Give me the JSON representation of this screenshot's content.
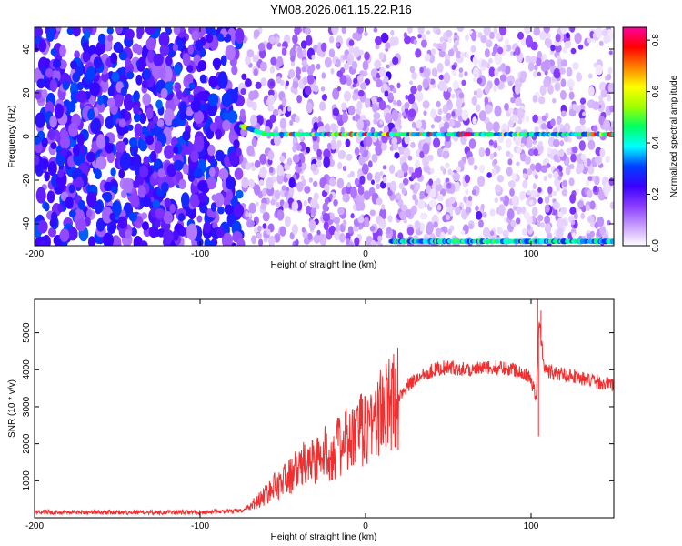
{
  "title": "YM08.2026.061.15.22.R16",
  "chart_data": [
    {
      "type": "heatmap",
      "xlabel": "Height of straight line (km)",
      "ylabel": "Frequency (Hz)",
      "xlim": [
        -200,
        150
      ],
      "ylim": [
        -50,
        50
      ],
      "xticks": [
        -200,
        -100,
        0,
        100
      ],
      "yticks": [
        -40,
        -20,
        0,
        20,
        40
      ],
      "colorbar": {
        "label": "Normalized spectral amplitude",
        "range": [
          0.0,
          0.85
        ],
        "ticks": [
          "0.0",
          "0.2",
          "0.4",
          "0.6",
          "0.8"
        ],
        "colors": [
          "#ffffff",
          "#c79cff",
          "#8a3cff",
          "#3a00ff",
          "#0040ff",
          "#00ffff",
          "#00ff60",
          "#a0ff00",
          "#ffff00",
          "#ff8000",
          "#ff0000",
          "#ff00a0"
        ]
      },
      "features": [
        {
          "name": "main-line",
          "x_range": [
            -75,
            150
          ],
          "freq": 1
        },
        {
          "name": "lower-edge-line",
          "x_range": [
            15,
            150
          ],
          "freq": -48
        }
      ]
    },
    {
      "type": "line",
      "xlabel": "Height of straight line (km)",
      "ylabel": "SNR (10 * v/v)",
      "xlim": [
        -200,
        150
      ],
      "ylim": [
        0,
        5900
      ],
      "xticks": [
        -200,
        -100,
        0,
        100
      ],
      "yticks": [
        1000,
        2000,
        3000,
        4000,
        5000
      ],
      "color": "#f03030",
      "series": [
        {
          "name": "SNR",
          "x": [
            -200,
            -150,
            -100,
            -75,
            -65,
            -55,
            -45,
            -35,
            -25,
            -15,
            -5,
            5,
            15,
            25,
            35,
            45,
            55,
            65,
            75,
            85,
            95,
            100,
            103,
            105,
            108,
            115,
            125,
            135,
            150
          ],
          "values": [
            150,
            150,
            150,
            180,
            450,
            850,
            1150,
            1500,
            1700,
            1950,
            2250,
            2650,
            3050,
            3550,
            3900,
            4050,
            4050,
            4000,
            4050,
            4050,
            3950,
            3750,
            3200,
            5300,
            4000,
            3900,
            3850,
            3700,
            3600
          ]
        }
      ],
      "spikes": [
        {
          "x": 104,
          "y": 5900
        },
        {
          "x": 106,
          "y": 5600
        },
        {
          "x": 104.5,
          "y": 2200
        }
      ]
    }
  ]
}
